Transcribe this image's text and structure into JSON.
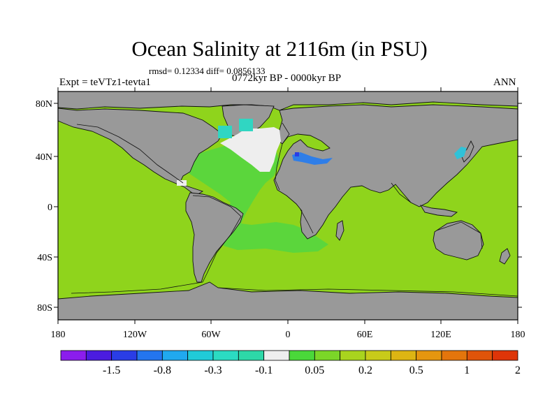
{
  "title": "Ocean Salinity at 2116m (in PSU)",
  "stats_line": "rmsd= 0.12334 diff= 0.0856133",
  "experiment": "Expt = teVTz1-tevta1",
  "period": "0772kyr BP - 0000kyr BP",
  "season": "ANN",
  "lat_ticks": [
    "80N",
    "40N",
    "0",
    "40S",
    "80S"
  ],
  "lon_ticks": [
    "180",
    "120W",
    "60W",
    "0",
    "60E",
    "120E",
    "180"
  ],
  "colorbar": {
    "colors": [
      "#8b1ded",
      "#4b1ce0",
      "#2a3de6",
      "#2475ee",
      "#20a9ef",
      "#20cbd8",
      "#2bdbc2",
      "#2dd8a8",
      "#eeeeee",
      "#4ad83a",
      "#7bd628",
      "#a9d41e",
      "#c8cb1a",
      "#ddb513",
      "#e5960f",
      "#e4750c",
      "#e0540a",
      "#de3508"
    ],
    "labels": [
      "-1.5",
      "-0.8",
      "-0.3",
      "-0.1",
      "0.05",
      "0.2",
      "0.5",
      "1",
      "2"
    ]
  },
  "legend": {
    "land": "#999999",
    "ocean_main": "#8fd41c",
    "atlantic": "#5bd63c",
    "fresh": "#eeeeee",
    "north_basin": "#30d6c2",
    "med": "#2f7ee8"
  }
}
